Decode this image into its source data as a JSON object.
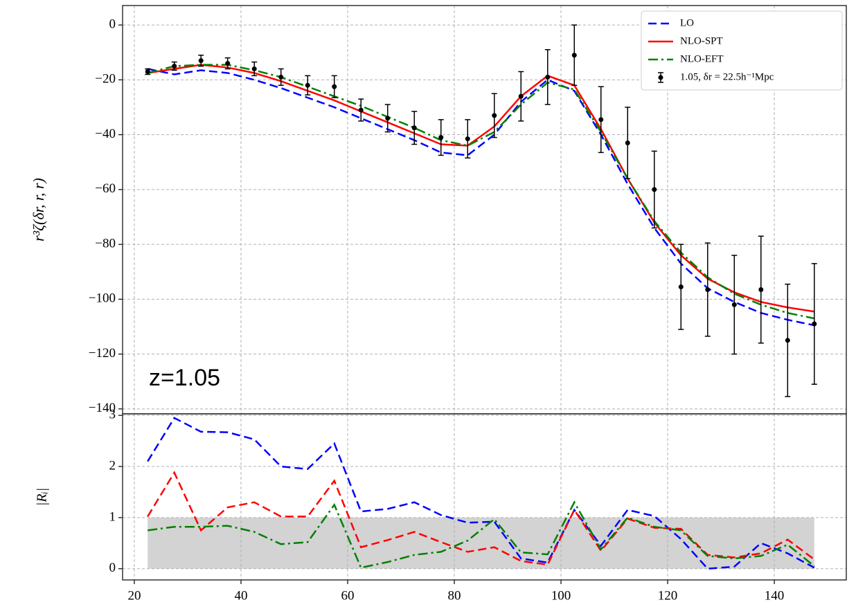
{
  "chart_data": [
    {
      "type": "line",
      "ylabel": "r³ζ(δr, r, r)",
      "annotation": "z=1.05",
      "xlim": [
        17.8,
        153.5
      ],
      "ylim": [
        -141.8,
        7.1
      ],
      "yticks": [
        {
          "value": 0,
          "label": "0"
        },
        {
          "value": -20,
          "label": "−20"
        },
        {
          "value": -40,
          "label": "−40"
        },
        {
          "value": -60,
          "label": "−60"
        },
        {
          "value": -80,
          "label": "−80"
        },
        {
          "value": -100,
          "label": "−100"
        },
        {
          "value": -120,
          "label": "−120"
        },
        {
          "value": -140,
          "label": "−140"
        }
      ],
      "grid": true,
      "legend": "upper right",
      "x": [
        22.5,
        27.5,
        32.5,
        37.5,
        42.5,
        47.5,
        52.5,
        57.5,
        62.5,
        67.5,
        72.5,
        77.5,
        82.5,
        87.5,
        92.5,
        97.5,
        102.5,
        107.5,
        112.5,
        117.5,
        122.5,
        127.5,
        132.5,
        137.5,
        142.5,
        147.5
      ],
      "series": [
        {
          "name": "LO",
          "color": "#0000ff",
          "linestyle": "dashed",
          "values": [
            -16,
            -18,
            -16.5,
            -17.5,
            -20,
            -23,
            -26.5,
            -30,
            -34,
            -38,
            -42,
            -46.5,
            -47.5,
            -40,
            -28,
            -20,
            -24,
            -40,
            -58,
            -74,
            -87,
            -96,
            -101,
            -105,
            -107.5,
            -109.5
          ]
        },
        {
          "name": "NLO-SPT",
          "color": "#ff0000",
          "linestyle": "solid",
          "values": [
            -17.5,
            -16,
            -14.5,
            -15.5,
            -17.5,
            -20.5,
            -24,
            -27.5,
            -31.5,
            -35.5,
            -39.5,
            -43.5,
            -44,
            -37,
            -26,
            -18.5,
            -22,
            -38,
            -56,
            -72,
            -84,
            -92.5,
            -97.5,
            -101,
            -103,
            -104.5
          ]
        },
        {
          "name": "NLO-EFT",
          "color": "#008000",
          "linestyle": "dashdot",
          "values": [
            -17.5,
            -15,
            -14.5,
            -14.5,
            -16.5,
            -19,
            -22.5,
            -26,
            -29.5,
            -33.5,
            -37.5,
            -42,
            -44,
            -39,
            -29,
            -21,
            -23.5,
            -39,
            -56,
            -71.5,
            -83,
            -92,
            -98,
            -102,
            -105,
            -107
          ]
        },
        {
          "name": "1.05, δr = 22.5h⁻¹Mpc",
          "color": "#000000",
          "linestyle": "errorbar",
          "values": [
            -17,
            -15,
            -13,
            -14,
            -16,
            -19,
            -22,
            -22.5,
            -31,
            -34,
            -37.5,
            -41,
            -41.5,
            -33,
            -26,
            -19,
            -11,
            -34.5,
            -43,
            -60,
            -95.5,
            -96.5,
            -102,
            -96.5,
            -115,
            -109
          ],
          "errors": [
            1,
            1.5,
            2,
            2,
            2.5,
            3,
            3.5,
            4,
            4,
            5,
            6,
            6.5,
            7,
            8,
            9,
            10,
            11,
            12,
            13,
            14,
            15.5,
            17,
            18,
            19.5,
            20.5,
            22
          ]
        }
      ]
    },
    {
      "type": "line",
      "ylabel": "|Rᵢ|",
      "xlim": [
        17.8,
        153.5
      ],
      "ylim": [
        -0.22,
        3.03
      ],
      "yticks": [
        0,
        1,
        2,
        3
      ],
      "xticks": [
        20,
        40,
        60,
        80,
        100,
        120,
        140
      ],
      "grid": true,
      "band": {
        "x": [
          22.5,
          147.5
        ],
        "y": [
          0,
          1
        ],
        "color": "#d3d3d3"
      },
      "x": [
        22.5,
        27.5,
        32.5,
        37.5,
        42.5,
        47.5,
        52.5,
        57.5,
        62.5,
        67.5,
        72.5,
        77.5,
        82.5,
        87.5,
        92.5,
        97.5,
        102.5,
        107.5,
        112.5,
        117.5,
        122.5,
        127.5,
        132.5,
        137.5,
        142.5,
        147.5
      ],
      "series": [
        {
          "name": "LO",
          "color": "#0000ff",
          "linestyle": "dashed",
          "values": [
            2.1,
            2.95,
            2.68,
            2.67,
            2.53,
            2.0,
            1.95,
            2.45,
            1.12,
            1.17,
            1.3,
            1.05,
            0.9,
            0.92,
            0.2,
            0.12,
            1.15,
            0.45,
            1.15,
            1.03,
            0.58,
            0.0,
            0.04,
            0.5,
            0.3,
            0.02
          ]
        },
        {
          "name": "NLO-SPT",
          "color": "#ff0000",
          "linestyle": "dashed",
          "values": [
            1.02,
            1.88,
            0.75,
            1.2,
            1.3,
            1.02,
            1.02,
            1.72,
            0.42,
            0.56,
            0.72,
            0.52,
            0.33,
            0.42,
            0.15,
            0.08,
            1.15,
            0.35,
            0.98,
            0.8,
            0.78,
            0.27,
            0.22,
            0.3,
            0.57,
            0.18
          ]
        },
        {
          "name": "NLO-EFT",
          "color": "#008000",
          "linestyle": "dashdot",
          "values": [
            0.75,
            0.82,
            0.82,
            0.84,
            0.72,
            0.48,
            0.52,
            1.25,
            0.02,
            0.13,
            0.27,
            0.33,
            0.55,
            0.97,
            0.32,
            0.28,
            1.3,
            0.38,
            1.0,
            0.82,
            0.75,
            0.25,
            0.2,
            0.25,
            0.47,
            0.05
          ]
        }
      ]
    }
  ]
}
